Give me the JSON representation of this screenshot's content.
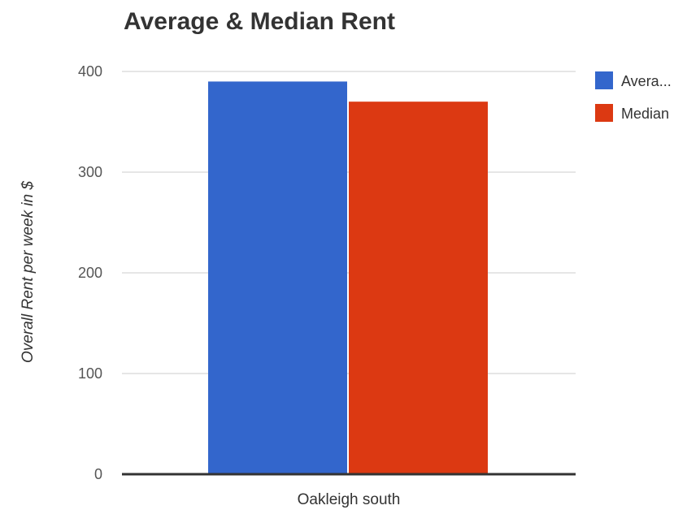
{
  "chart_data": {
    "type": "bar",
    "title": "Average & Median Rent",
    "ylabel": "Overall Rent per week in $",
    "xlabel": "",
    "categories": [
      "Oakleigh south"
    ],
    "series": [
      {
        "name": "Avera...",
        "values": [
          390
        ],
        "color": "#3366cc"
      },
      {
        "name": "Median",
        "values": [
          370
        ],
        "color": "#dc3912"
      }
    ],
    "ylim": [
      0,
      400
    ],
    "yticks": [
      0,
      100,
      200,
      300,
      400
    ],
    "grid": true,
    "legend_position": "right"
  }
}
